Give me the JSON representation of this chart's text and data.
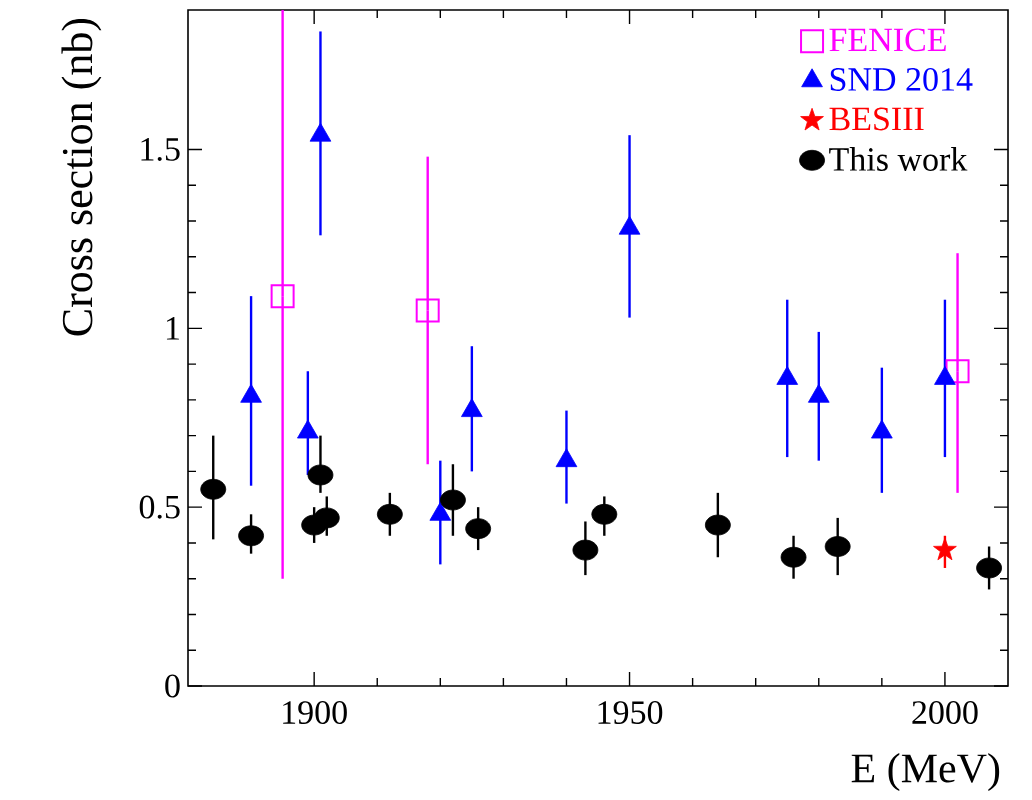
{
  "chart_data": {
    "type": "scatter",
    "xlabel": "E (MeV)",
    "ylabel": "Cross section (nb)",
    "xlim": [
      1880,
      2010
    ],
    "ylim": [
      0,
      1.89
    ],
    "xticks": [
      1900,
      1950,
      2000
    ],
    "yticks": [
      0,
      0.5,
      1,
      1.5
    ],
    "grid": false,
    "legend": "top right",
    "series": [
      {
        "name": "FENICE",
        "color": "#ff00ff",
        "marker": "square",
        "x": [
          1895,
          1918,
          2002
        ],
        "values": [
          1.09,
          1.05,
          0.88
        ],
        "errors": [
          [
            0.3,
            1.89
          ],
          [
            0.62,
            1.48
          ],
          [
            0.54,
            1.21
          ]
        ]
      },
      {
        "name": "SND 2014",
        "color": "#0000ff",
        "marker": "triangle",
        "x": [
          1890,
          1899,
          1901,
          1920,
          1925,
          1940,
          1950,
          1975,
          1980,
          1990,
          2000
        ],
        "values": [
          0.81,
          0.71,
          1.54,
          0.48,
          0.77,
          0.63,
          1.28,
          0.86,
          0.81,
          0.71,
          0.86
        ],
        "errors": [
          [
            0.56,
            1.09
          ],
          [
            0.59,
            0.88
          ],
          [
            1.26,
            1.83
          ],
          [
            0.34,
            0.63
          ],
          [
            0.6,
            0.95
          ],
          [
            0.51,
            0.77
          ],
          [
            1.03,
            1.54
          ],
          [
            0.64,
            1.08
          ],
          [
            0.63,
            0.99
          ],
          [
            0.54,
            0.89
          ],
          [
            0.64,
            1.08
          ]
        ]
      },
      {
        "name": "BESIII",
        "color": "#ff0000",
        "marker": "star",
        "x": [
          2000
        ],
        "values": [
          0.38
        ],
        "errors": [
          [
            0.33,
            0.42
          ]
        ]
      },
      {
        "name": "This work",
        "color": "#000000",
        "marker": "circle",
        "x": [
          1884,
          1890,
          1900,
          1901,
          1902,
          1912,
          1922,
          1926,
          1943,
          1946,
          1964,
          1976,
          1983,
          2007
        ],
        "values": [
          0.55,
          0.42,
          0.45,
          0.59,
          0.47,
          0.48,
          0.52,
          0.44,
          0.38,
          0.48,
          0.45,
          0.36,
          0.39,
          0.33
        ],
        "errors": [
          [
            0.41,
            0.7
          ],
          [
            0.37,
            0.48
          ],
          [
            0.4,
            0.5
          ],
          [
            0.54,
            0.7
          ],
          [
            0.42,
            0.53
          ],
          [
            0.42,
            0.54
          ],
          [
            0.42,
            0.62
          ],
          [
            0.38,
            0.5
          ],
          [
            0.31,
            0.46
          ],
          [
            0.42,
            0.53
          ],
          [
            0.36,
            0.54
          ],
          [
            0.3,
            0.42
          ],
          [
            0.31,
            0.47
          ],
          [
            0.27,
            0.39
          ]
        ]
      }
    ]
  }
}
